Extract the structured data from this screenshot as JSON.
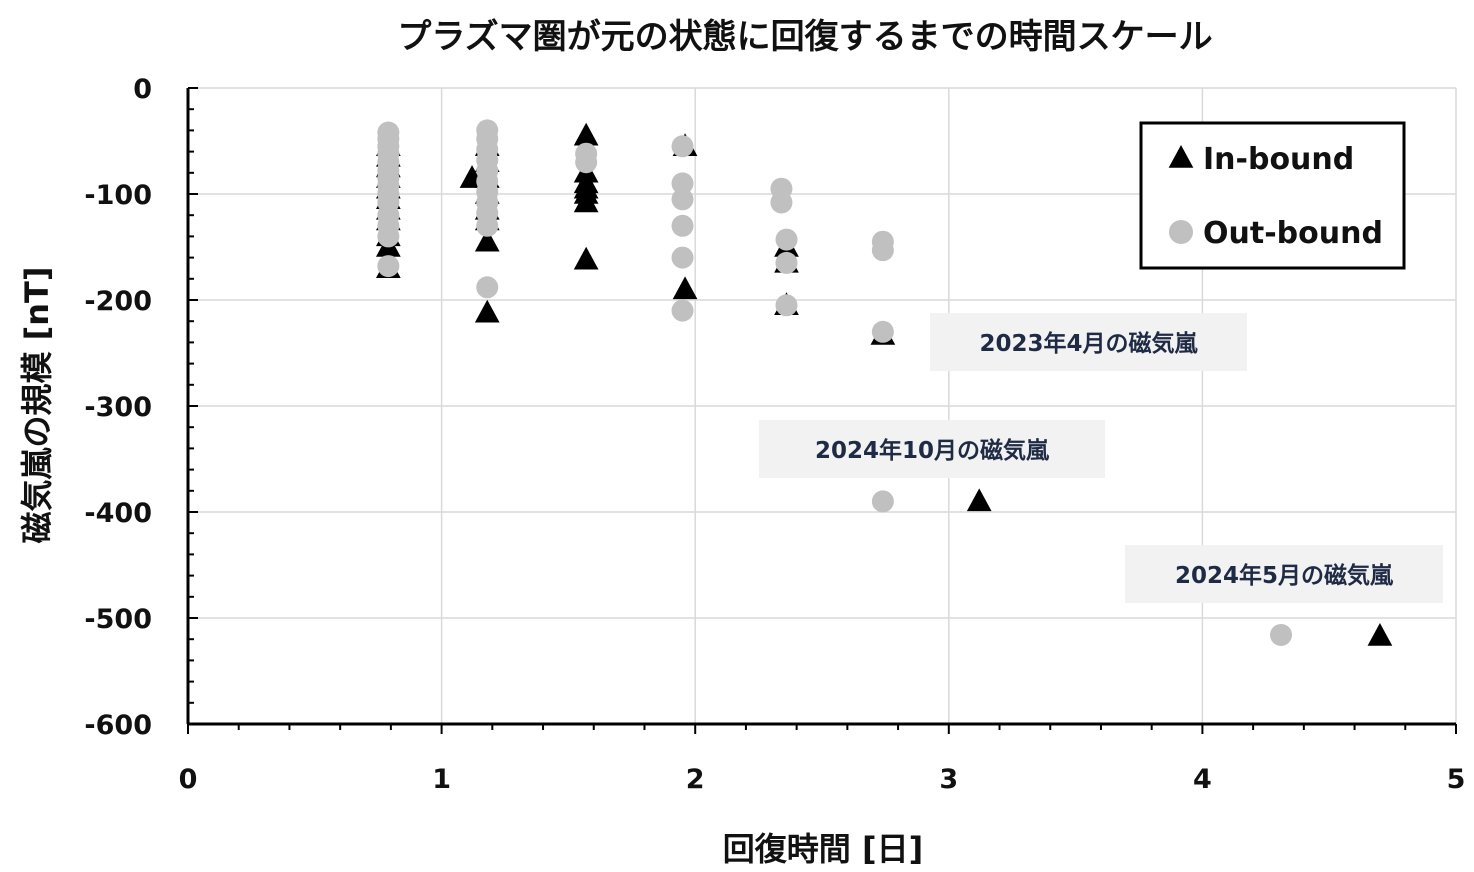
{
  "chart_data": {
    "type": "scatter",
    "title": "プラズマ圏が元の状態に回復するまでの時間スケール",
    "xlabel": "回復時間 [日]",
    "ylabel": "磁気嵐の規模 [nT]",
    "xlim": [
      0,
      5
    ],
    "ylim": [
      -600,
      0
    ],
    "x_ticks": [
      "0",
      "1",
      "2",
      "3",
      "4",
      "5"
    ],
    "y_ticks": [
      "0",
      "-100",
      "-200",
      "-300",
      "-400",
      "-500",
      "-600"
    ],
    "grid": true,
    "legend_position": "top-right",
    "series": [
      {
        "name": "In-bound",
        "marker": "triangle",
        "color": "#000000",
        "points": [
          [
            0.79,
            -55
          ],
          [
            0.79,
            -65
          ],
          [
            0.79,
            -75
          ],
          [
            0.79,
            -85
          ],
          [
            0.79,
            -95
          ],
          [
            0.79,
            -105
          ],
          [
            0.79,
            -115
          ],
          [
            0.79,
            -125
          ],
          [
            0.79,
            -140
          ],
          [
            0.79,
            -150
          ],
          [
            0.79,
            -170
          ],
          [
            1.12,
            -85
          ],
          [
            1.18,
            -55
          ],
          [
            1.18,
            -70
          ],
          [
            1.18,
            -85
          ],
          [
            1.18,
            -100
          ],
          [
            1.18,
            -115
          ],
          [
            1.18,
            -125
          ],
          [
            1.18,
            -145
          ],
          [
            1.18,
            -212
          ],
          [
            1.57,
            -45
          ],
          [
            1.57,
            -80
          ],
          [
            1.57,
            -90
          ],
          [
            1.57,
            -95
          ],
          [
            1.57,
            -100
          ],
          [
            1.57,
            -108
          ],
          [
            1.57,
            -162
          ],
          [
            1.96,
            -55
          ],
          [
            1.96,
            -190
          ],
          [
            2.36,
            -150
          ],
          [
            2.36,
            -165
          ],
          [
            2.36,
            -205
          ],
          [
            2.74,
            -233
          ],
          [
            3.12,
            -390
          ],
          [
            4.7,
            -517
          ]
        ]
      },
      {
        "name": "Out-bound",
        "marker": "circle",
        "color": "#c0c0c0",
        "points": [
          [
            0.79,
            -42
          ],
          [
            0.79,
            -48
          ],
          [
            0.79,
            -55
          ],
          [
            0.79,
            -62
          ],
          [
            0.79,
            -70
          ],
          [
            0.79,
            -78
          ],
          [
            0.79,
            -85
          ],
          [
            0.79,
            -92
          ],
          [
            0.79,
            -100
          ],
          [
            0.79,
            -108
          ],
          [
            0.79,
            -120
          ],
          [
            0.79,
            -130
          ],
          [
            0.79,
            -140
          ],
          [
            0.79,
            -168
          ],
          [
            1.18,
            -40
          ],
          [
            1.18,
            -48
          ],
          [
            1.18,
            -58
          ],
          [
            1.18,
            -68
          ],
          [
            1.18,
            -78
          ],
          [
            1.18,
            -88
          ],
          [
            1.18,
            -98
          ],
          [
            1.18,
            -108
          ],
          [
            1.18,
            -118
          ],
          [
            1.18,
            -130
          ],
          [
            1.18,
            -188
          ],
          [
            1.57,
            -62
          ],
          [
            1.57,
            -70
          ],
          [
            1.95,
            -55
          ],
          [
            1.95,
            -90
          ],
          [
            1.95,
            -105
          ],
          [
            1.95,
            -130
          ],
          [
            1.95,
            -160
          ],
          [
            1.95,
            -210
          ],
          [
            2.34,
            -95
          ],
          [
            2.34,
            -108
          ],
          [
            2.36,
            -143
          ],
          [
            2.36,
            -165
          ],
          [
            2.36,
            -205
          ],
          [
            2.74,
            -145
          ],
          [
            2.74,
            -153
          ],
          [
            2.74,
            -230
          ],
          [
            2.74,
            -390
          ],
          [
            4.31,
            -516
          ]
        ]
      }
    ],
    "annotations": [
      {
        "text": "2023年4月の磁気嵐"
      },
      {
        "text": "2024年10月の磁気嵐"
      },
      {
        "text": "2024年5月の磁気嵐"
      }
    ]
  }
}
